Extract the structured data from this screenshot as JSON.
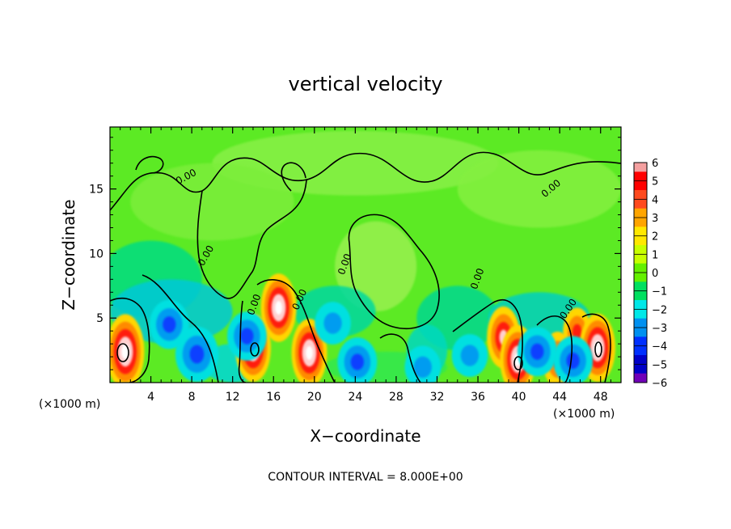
{
  "chart_data": {
    "type": "heatmap",
    "title": "vertical velocity",
    "xlabel": "X−coordinate",
    "ylabel": "Z−coordinate",
    "x_unit_left": "(×1000 m)",
    "x_unit_right": "(×1000 m)",
    "xlim": [
      0,
      50
    ],
    "ylim": [
      0,
      19.8
    ],
    "x_ticks": [
      4,
      8,
      12,
      16,
      20,
      24,
      28,
      32,
      36,
      40,
      44,
      48
    ],
    "x_tick_labels": [
      "4",
      "8",
      "12",
      "16",
      "20",
      "24",
      "28",
      "32",
      "36",
      "40",
      "44",
      "48"
    ],
    "y_ticks": [
      5,
      10,
      15
    ],
    "y_tick_labels": [
      "5",
      "10",
      "15"
    ],
    "colorbar": {
      "levels": [
        6,
        5,
        4,
        3,
        2,
        1,
        0,
        -1,
        -2,
        -3,
        -4,
        -5,
        -6
      ],
      "labels": [
        "6",
        "5",
        "4",
        "3",
        "2",
        "1",
        "0",
        "−1",
        "−2",
        "−3",
        "−4",
        "−5",
        "−6"
      ],
      "colors": [
        "#f4a0a0",
        "#ff0000",
        "#ff4a1e",
        "#ffa500",
        "#ffe800",
        "#c8ff00",
        "#64f000",
        "#00e060",
        "#00e8e8",
        "#0090f0",
        "#0030ff",
        "#0000c8",
        "#7000b8"
      ]
    },
    "contour_label": "0.00",
    "footer": "CONTOUR INTERVAL = 8.000E+00",
    "features": [
      {
        "type": "updraft",
        "x": 1.5,
        "z": 2.4,
        "peak": 8
      },
      {
        "type": "updraft",
        "x": 14.0,
        "z": 2.7,
        "peak": 7
      },
      {
        "type": "updraft",
        "x": 16.5,
        "z": 5.8,
        "peak": 7
      },
      {
        "type": "updraft",
        "x": 19.5,
        "z": 2.3,
        "peak": 7
      },
      {
        "type": "updraft",
        "x": 38.5,
        "z": 3.5,
        "peak": 6
      },
      {
        "type": "updraft",
        "x": 39.9,
        "z": 1.8,
        "peak": 7
      },
      {
        "type": "updraft",
        "x": 43.8,
        "z": 1.8,
        "peak": 5
      },
      {
        "type": "updraft",
        "x": 45.7,
        "z": 3.9,
        "peak": 4
      },
      {
        "type": "updraft",
        "x": 47.7,
        "z": 2.7,
        "peak": 7
      },
      {
        "type": "downdraft",
        "x": 5.8,
        "z": 4.5,
        "peak": -4
      },
      {
        "type": "downdraft",
        "x": 8.5,
        "z": 2.2,
        "peak": -5
      },
      {
        "type": "downdraft",
        "x": 13.4,
        "z": 3.6,
        "peak": -4
      },
      {
        "type": "downdraft",
        "x": 21.8,
        "z": 4.6,
        "peak": -3
      },
      {
        "type": "downdraft",
        "x": 24.2,
        "z": 1.6,
        "peak": -4
      },
      {
        "type": "downdraft",
        "x": 30.6,
        "z": 1.2,
        "peak": -3
      },
      {
        "type": "downdraft",
        "x": 35.2,
        "z": 2.1,
        "peak": -3
      },
      {
        "type": "downdraft",
        "x": 41.8,
        "z": 2.4,
        "peak": -4
      },
      {
        "type": "downdraft",
        "x": 45.3,
        "z": 1.7,
        "peak": -4
      }
    ]
  }
}
